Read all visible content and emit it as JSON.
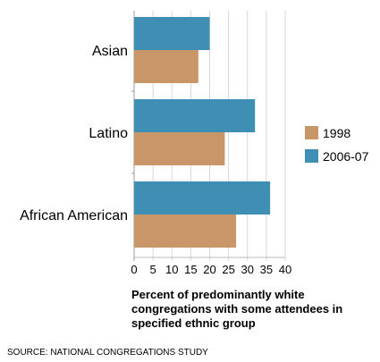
{
  "chart_data": {
    "type": "bar",
    "orientation": "horizontal",
    "categories": [
      "Asian",
      "Latino",
      "African American"
    ],
    "series": [
      {
        "name": "2006-07",
        "color": "#3f8fb5",
        "values": [
          20,
          32,
          36
        ]
      },
      {
        "name": "1998",
        "color": "#c9966a",
        "values": [
          17,
          24,
          27
        ]
      }
    ],
    "xlim": [
      0,
      40
    ],
    "xticks": [
      "0",
      "5",
      "10",
      "15",
      "20",
      "25",
      "30",
      "35",
      "40"
    ],
    "xlabel": "Percent of predominantly white congregations with some attendees in specified ethnic group",
    "grid": true,
    "legend": [
      "1998",
      "2006-07"
    ],
    "legend_placement": "right"
  },
  "source_text": "SOURCE: NATIONAL CONGREGATIONS STUDY"
}
